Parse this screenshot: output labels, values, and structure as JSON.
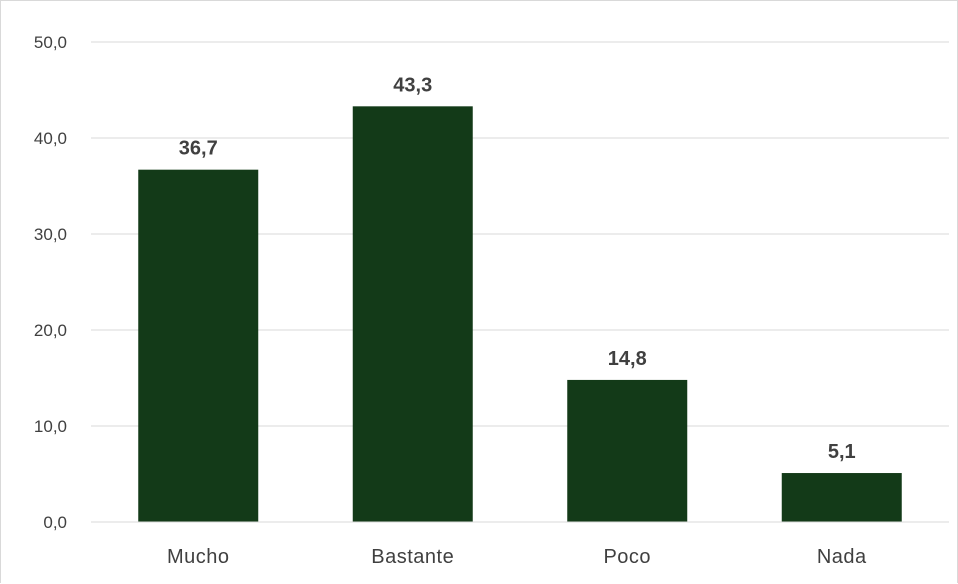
{
  "chart_data": {
    "type": "bar",
    "categories": [
      "Mucho",
      "Bastante",
      "Poco",
      "Nada"
    ],
    "values": [
      36.7,
      43.3,
      14.8,
      5.1
    ],
    "value_labels": [
      "36,7",
      "43,3",
      "14,8",
      "5,1"
    ],
    "title": "",
    "xlabel": "",
    "ylabel": "",
    "ylim": [
      0,
      50
    ],
    "yticks": [
      0,
      10,
      20,
      30,
      40,
      50
    ],
    "ytick_labels": [
      "0,0",
      "10,0",
      "20,0",
      "30,0",
      "40,0",
      "50,0"
    ],
    "grid": true,
    "legend": "none",
    "colors": {
      "bar": "#133A18",
      "grid": "#d9d9d9",
      "text": "#404040"
    }
  }
}
